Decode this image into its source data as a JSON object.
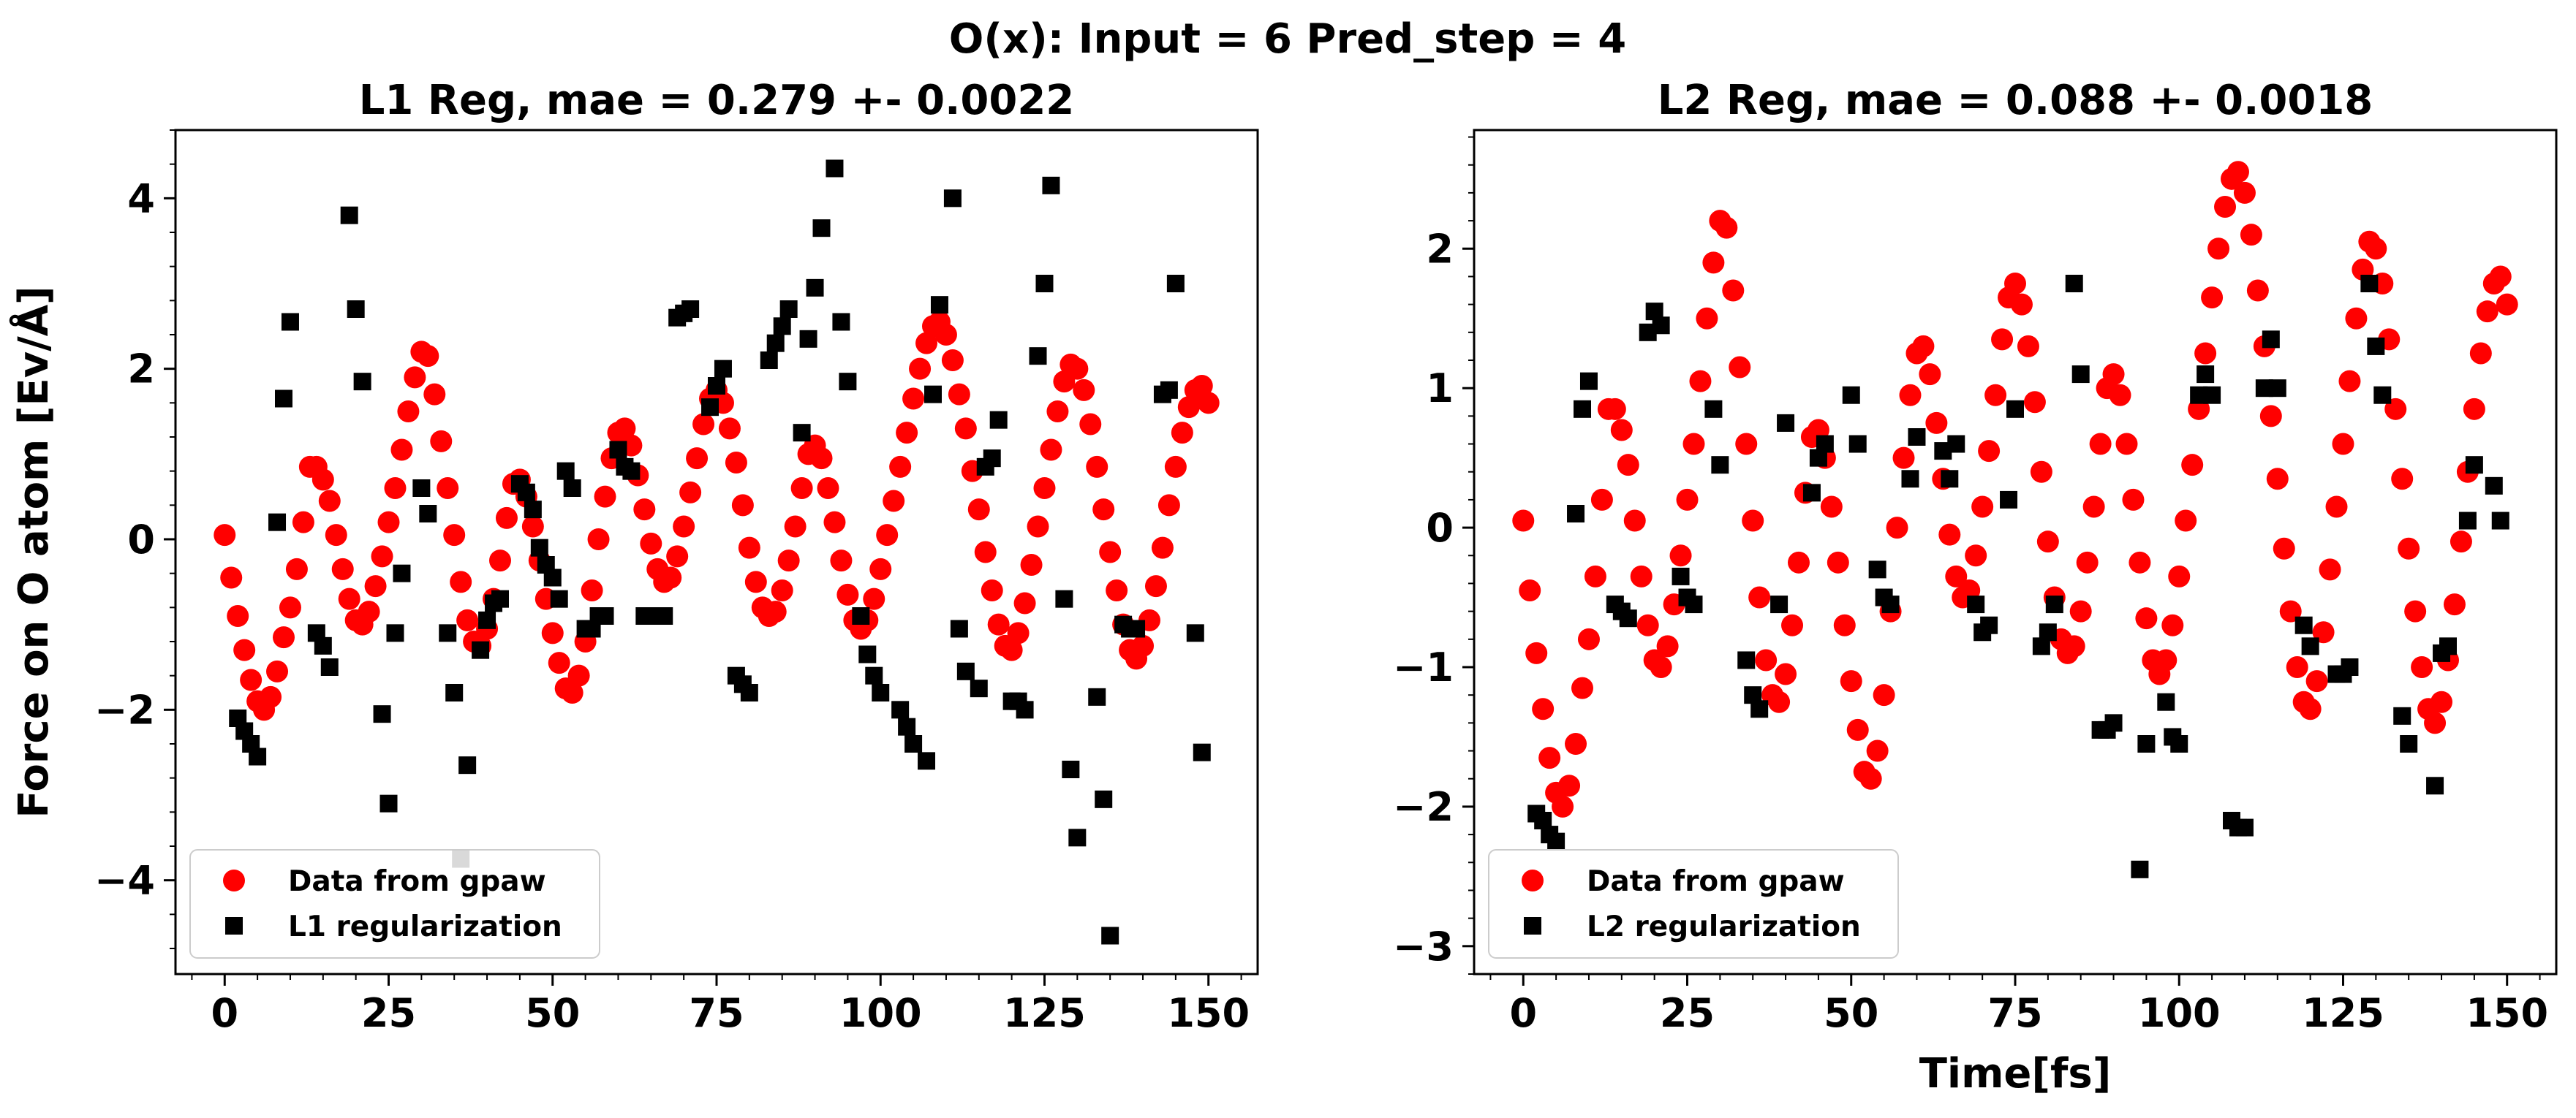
{
  "figure": {
    "suptitle": "O(x): Input = 6 Pred_step = 4",
    "colors": {
      "data": "#ff0000",
      "model": "#000000"
    }
  },
  "chart_data": [
    {
      "type": "scatter",
      "title": "L1 Reg, mae = 0.279 +- 0.0022",
      "xlabel": "",
      "ylabel": "Force on O atom [Ev/Å]",
      "xlim": [
        -7.5,
        157.5
      ],
      "ylim": [
        -5.1,
        4.8
      ],
      "xticks": [
        0,
        25,
        50,
        75,
        100,
        125,
        150
      ],
      "xtick_labels": [
        "0",
        "25",
        "50",
        "75",
        "100",
        "125",
        "150"
      ],
      "yticks": [
        -4,
        -2,
        0,
        2,
        4
      ],
      "ytick_labels": [
        "−4",
        "−2",
        "0",
        "2",
        "4"
      ],
      "grid": false,
      "legend_position": "lower-left",
      "series": [
        {
          "name": "Data from gpaw",
          "marker": "circle",
          "color": "#ff0000",
          "x": [
            0,
            1,
            2,
            3,
            4,
            5,
            6,
            7,
            8,
            9,
            10,
            11,
            12,
            13,
            14,
            15,
            16,
            17,
            18,
            19,
            20,
            21,
            22,
            23,
            24,
            25,
            26,
            27,
            28,
            29,
            30,
            31,
            32,
            33,
            34,
            35,
            36,
            37,
            38,
            39,
            40,
            41,
            42,
            43,
            44,
            45,
            46,
            47,
            48,
            49,
            50,
            51,
            52,
            53,
            54,
            55,
            56,
            57,
            58,
            59,
            60,
            61,
            62,
            63,
            64,
            65,
            66,
            67,
            68,
            69,
            70,
            71,
            72,
            73,
            74,
            75,
            76,
            77,
            78,
            79,
            80,
            81,
            82,
            83,
            84,
            85,
            86,
            87,
            88,
            89,
            90,
            91,
            92,
            93,
            94,
            95,
            96,
            97,
            98,
            99,
            100,
            101,
            102,
            103,
            104,
            105,
            106,
            107,
            108,
            109,
            110,
            111,
            112,
            113,
            114,
            115,
            116,
            117,
            118,
            119,
            120,
            121,
            122,
            123,
            124,
            125,
            126,
            127,
            128,
            129,
            130,
            131,
            132,
            133,
            134,
            135,
            136,
            137,
            138,
            139,
            140,
            141,
            142,
            143,
            144,
            145,
            146,
            147,
            148,
            149,
            150
          ],
          "y": [
            0.05,
            -0.45,
            -0.9,
            -1.3,
            -1.65,
            -1.9,
            -2.0,
            -1.85,
            -1.55,
            -1.15,
            -0.8,
            -0.35,
            0.2,
            0.85,
            0.85,
            0.7,
            0.45,
            0.05,
            -0.35,
            -0.7,
            -0.95,
            -1.0,
            -0.85,
            -0.55,
            -0.2,
            0.2,
            0.6,
            1.05,
            1.5,
            1.9,
            2.2,
            2.15,
            1.7,
            1.15,
            0.6,
            0.05,
            -0.5,
            -0.95,
            -1.2,
            -1.25,
            -1.05,
            -0.7,
            -0.25,
            0.25,
            0.65,
            0.7,
            0.5,
            0.15,
            -0.25,
            -0.7,
            -1.1,
            -1.45,
            -1.75,
            -1.8,
            -1.6,
            -1.2,
            -0.6,
            0.0,
            0.5,
            0.95,
            1.25,
            1.3,
            1.1,
            0.75,
            0.35,
            -0.05,
            -0.35,
            -0.5,
            -0.45,
            -0.2,
            0.15,
            0.55,
            0.95,
            1.35,
            1.65,
            1.75,
            1.6,
            1.3,
            0.9,
            0.4,
            -0.1,
            -0.5,
            -0.8,
            -0.9,
            -0.85,
            -0.6,
            -0.25,
            0.15,
            0.6,
            1.0,
            1.1,
            0.95,
            0.6,
            0.2,
            -0.25,
            -0.65,
            -0.95,
            -1.05,
            -0.95,
            -0.7,
            -0.35,
            0.05,
            0.45,
            0.85,
            1.25,
            1.65,
            2.0,
            2.3,
            2.5,
            2.55,
            2.4,
            2.1,
            1.7,
            1.3,
            0.8,
            0.35,
            -0.15,
            -0.6,
            -1.0,
            -1.25,
            -1.3,
            -1.1,
            -0.75,
            -0.3,
            0.15,
            0.6,
            1.05,
            1.5,
            1.85,
            2.05,
            2.0,
            1.75,
            1.35,
            0.85,
            0.35,
            -0.15,
            -0.6,
            -1.0,
            -1.3,
            -1.4,
            -1.25,
            -0.95,
            -0.55,
            -0.1,
            0.4,
            0.85,
            1.25,
            1.55,
            1.75,
            1.8,
            1.6
          ]
        },
        {
          "name": "L1 regularization",
          "marker": "square",
          "color": "#000000",
          "x": [
            2,
            3,
            4,
            5,
            8,
            9,
            10,
            14,
            15,
            16,
            19,
            20,
            21,
            24,
            25,
            26,
            27,
            30,
            31,
            34,
            35,
            36,
            37,
            39,
            40,
            41,
            42,
            45,
            46,
            47,
            48,
            49,
            50,
            51,
            52,
            53,
            55,
            56,
            57,
            58,
            60,
            61,
            62,
            64,
            65,
            66,
            67,
            69,
            70,
            71,
            74,
            75,
            76,
            78,
            79,
            80,
            83,
            84,
            85,
            86,
            88,
            89,
            90,
            91,
            93,
            94,
            95,
            97,
            98,
            99,
            100,
            103,
            104,
            105,
            107,
            108,
            109,
            111,
            112,
            113,
            115,
            116,
            117,
            118,
            120,
            121,
            122,
            124,
            125,
            126,
            128,
            129,
            130,
            133,
            134,
            135,
            137,
            138,
            139,
            143,
            144,
            145,
            148,
            149
          ],
          "y": [
            -2.1,
            -2.25,
            -2.4,
            -2.55,
            0.2,
            1.65,
            2.55,
            -1.1,
            -1.25,
            -1.5,
            3.8,
            2.7,
            1.85,
            -2.05,
            -3.1,
            -1.1,
            -0.4,
            0.6,
            0.3,
            -1.1,
            -1.8,
            -3.75,
            -2.65,
            -1.3,
            -0.95,
            -0.75,
            -0.7,
            0.65,
            0.55,
            0.35,
            -0.1,
            -0.3,
            -0.45,
            -0.7,
            0.8,
            0.6,
            -1.05,
            -1.05,
            -0.9,
            -0.9,
            1.05,
            0.85,
            0.8,
            -0.9,
            -0.9,
            -0.9,
            -0.9,
            2.6,
            2.65,
            2.7,
            1.55,
            1.8,
            2.0,
            -1.6,
            -1.7,
            -1.8,
            2.1,
            2.3,
            2.5,
            2.7,
            1.25,
            2.35,
            2.95,
            3.65,
            4.35,
            2.55,
            1.85,
            -0.9,
            -1.35,
            -1.6,
            -1.8,
            -2.0,
            -2.2,
            -2.4,
            -2.6,
            1.7,
            2.75,
            4.0,
            -1.05,
            -1.55,
            -1.75,
            0.85,
            0.95,
            1.4,
            -1.9,
            -1.9,
            -2.0,
            2.15,
            3.0,
            4.15,
            -0.7,
            -2.7,
            -3.5,
            -1.85,
            -3.05,
            -4.65,
            -1.0,
            -1.05,
            -1.05,
            1.7,
            1.75,
            3.0,
            -1.1,
            -2.5
          ]
        }
      ]
    },
    {
      "type": "scatter",
      "title": "L2 Reg, mae = 0.088 +- 0.0018",
      "xlabel": "Time[fs]",
      "ylabel": "",
      "xlim": [
        -7.5,
        157.5
      ],
      "ylim": [
        -3.2,
        2.85
      ],
      "xticks": [
        0,
        25,
        50,
        75,
        100,
        125,
        150
      ],
      "xtick_labels": [
        "0",
        "25",
        "50",
        "75",
        "100",
        "125",
        "150"
      ],
      "yticks": [
        -3,
        -2,
        -1,
        0,
        1,
        2
      ],
      "ytick_labels": [
        "−3",
        "−2",
        "−1",
        "0",
        "1",
        "2"
      ],
      "grid": false,
      "legend_position": "lower-left",
      "series": [
        {
          "name": "Data from gpaw",
          "marker": "circle",
          "color": "#ff0000",
          "x": [
            0,
            1,
            2,
            3,
            4,
            5,
            6,
            7,
            8,
            9,
            10,
            11,
            12,
            13,
            14,
            15,
            16,
            17,
            18,
            19,
            20,
            21,
            22,
            23,
            24,
            25,
            26,
            27,
            28,
            29,
            30,
            31,
            32,
            33,
            34,
            35,
            36,
            37,
            38,
            39,
            40,
            41,
            42,
            43,
            44,
            45,
            46,
            47,
            48,
            49,
            50,
            51,
            52,
            53,
            54,
            55,
            56,
            57,
            58,
            59,
            60,
            61,
            62,
            63,
            64,
            65,
            66,
            67,
            68,
            69,
            70,
            71,
            72,
            73,
            74,
            75,
            76,
            77,
            78,
            79,
            80,
            81,
            82,
            83,
            84,
            85,
            86,
            87,
            88,
            89,
            90,
            91,
            92,
            93,
            94,
            95,
            96,
            97,
            98,
            99,
            100,
            101,
            102,
            103,
            104,
            105,
            106,
            107,
            108,
            109,
            110,
            111,
            112,
            113,
            114,
            115,
            116,
            117,
            118,
            119,
            120,
            121,
            122,
            123,
            124,
            125,
            126,
            127,
            128,
            129,
            130,
            131,
            132,
            133,
            134,
            135,
            136,
            137,
            138,
            139,
            140,
            141,
            142,
            143,
            144,
            145,
            146,
            147,
            148,
            149,
            150
          ],
          "y": [
            0.05,
            -0.45,
            -0.9,
            -1.3,
            -1.65,
            -1.9,
            -2.0,
            -1.85,
            -1.55,
            -1.15,
            -0.8,
            -0.35,
            0.2,
            0.85,
            0.85,
            0.7,
            0.45,
            0.05,
            -0.35,
            -0.7,
            -0.95,
            -1.0,
            -0.85,
            -0.55,
            -0.2,
            0.2,
            0.6,
            1.05,
            1.5,
            1.9,
            2.2,
            2.15,
            1.7,
            1.15,
            0.6,
            0.05,
            -0.5,
            -0.95,
            -1.2,
            -1.25,
            -1.05,
            -0.7,
            -0.25,
            0.25,
            0.65,
            0.7,
            0.5,
            0.15,
            -0.25,
            -0.7,
            -1.1,
            -1.45,
            -1.75,
            -1.8,
            -1.6,
            -1.2,
            -0.6,
            0.0,
            0.5,
            0.95,
            1.25,
            1.3,
            1.1,
            0.75,
            0.35,
            -0.05,
            -0.35,
            -0.5,
            -0.45,
            -0.2,
            0.15,
            0.55,
            0.95,
            1.35,
            1.65,
            1.75,
            1.6,
            1.3,
            0.9,
            0.4,
            -0.1,
            -0.5,
            -0.8,
            -0.9,
            -0.85,
            -0.6,
            -0.25,
            0.15,
            0.6,
            1.0,
            1.1,
            0.95,
            0.6,
            0.2,
            -0.25,
            -0.65,
            -0.95,
            -1.05,
            -0.95,
            -0.7,
            -0.35,
            0.05,
            0.45,
            0.85,
            1.25,
            1.65,
            2.0,
            2.3,
            2.5,
            2.55,
            2.4,
            2.1,
            1.7,
            1.3,
            0.8,
            0.35,
            -0.15,
            -0.6,
            -1.0,
            -1.25,
            -1.3,
            -1.1,
            -0.75,
            -0.3,
            0.15,
            0.6,
            1.05,
            1.5,
            1.85,
            2.05,
            2.0,
            1.75,
            1.35,
            0.85,
            0.35,
            -0.15,
            -0.6,
            -1.0,
            -1.3,
            -1.4,
            -1.25,
            -0.95,
            -0.55,
            -0.1,
            0.4,
            0.85,
            1.25,
            1.55,
            1.75,
            1.8,
            1.6
          ]
        },
        {
          "name": "L2 regularization",
          "marker": "square",
          "color": "#000000",
          "x": [
            2,
            3,
            4,
            5,
            8,
            9,
            10,
            14,
            15,
            16,
            19,
            20,
            21,
            24,
            25,
            26,
            29,
            30,
            34,
            35,
            36,
            39,
            40,
            44,
            45,
            46,
            50,
            51,
            54,
            55,
            56,
            59,
            60,
            64,
            65,
            66,
            69,
            70,
            71,
            74,
            75,
            79,
            80,
            81,
            84,
            85,
            88,
            89,
            90,
            94,
            95,
            98,
            99,
            100,
            103,
            104,
            105,
            108,
            109,
            110,
            113,
            114,
            115,
            119,
            120,
            124,
            125,
            126,
            129,
            130,
            131,
            134,
            135,
            139,
            140,
            141,
            144,
            145,
            148,
            149
          ],
          "y": [
            -2.05,
            -2.1,
            -2.2,
            -2.25,
            0.1,
            0.85,
            1.05,
            -0.55,
            -0.6,
            -0.65,
            1.4,
            1.55,
            1.45,
            -0.35,
            -0.5,
            -0.55,
            0.85,
            0.45,
            -0.95,
            -1.2,
            -1.3,
            -0.55,
            0.75,
            0.25,
            0.5,
            0.6,
            0.95,
            0.6,
            -0.3,
            -0.5,
            -0.55,
            0.35,
            0.65,
            0.55,
            0.35,
            0.6,
            -0.55,
            -0.75,
            -0.7,
            0.2,
            0.85,
            -0.85,
            -0.75,
            -0.55,
            1.75,
            1.1,
            -1.45,
            -1.45,
            -1.4,
            -2.45,
            -1.55,
            -1.25,
            -1.5,
            -1.55,
            0.95,
            1.1,
            0.95,
            -2.1,
            -2.15,
            -2.15,
            1.0,
            1.35,
            1.0,
            -0.7,
            -0.85,
            -1.05,
            -1.05,
            -1.0,
            1.75,
            1.3,
            0.95,
            -1.35,
            -1.55,
            -1.85,
            -0.9,
            -0.85,
            0.05,
            0.45,
            0.3,
            0.05
          ]
        }
      ]
    }
  ]
}
